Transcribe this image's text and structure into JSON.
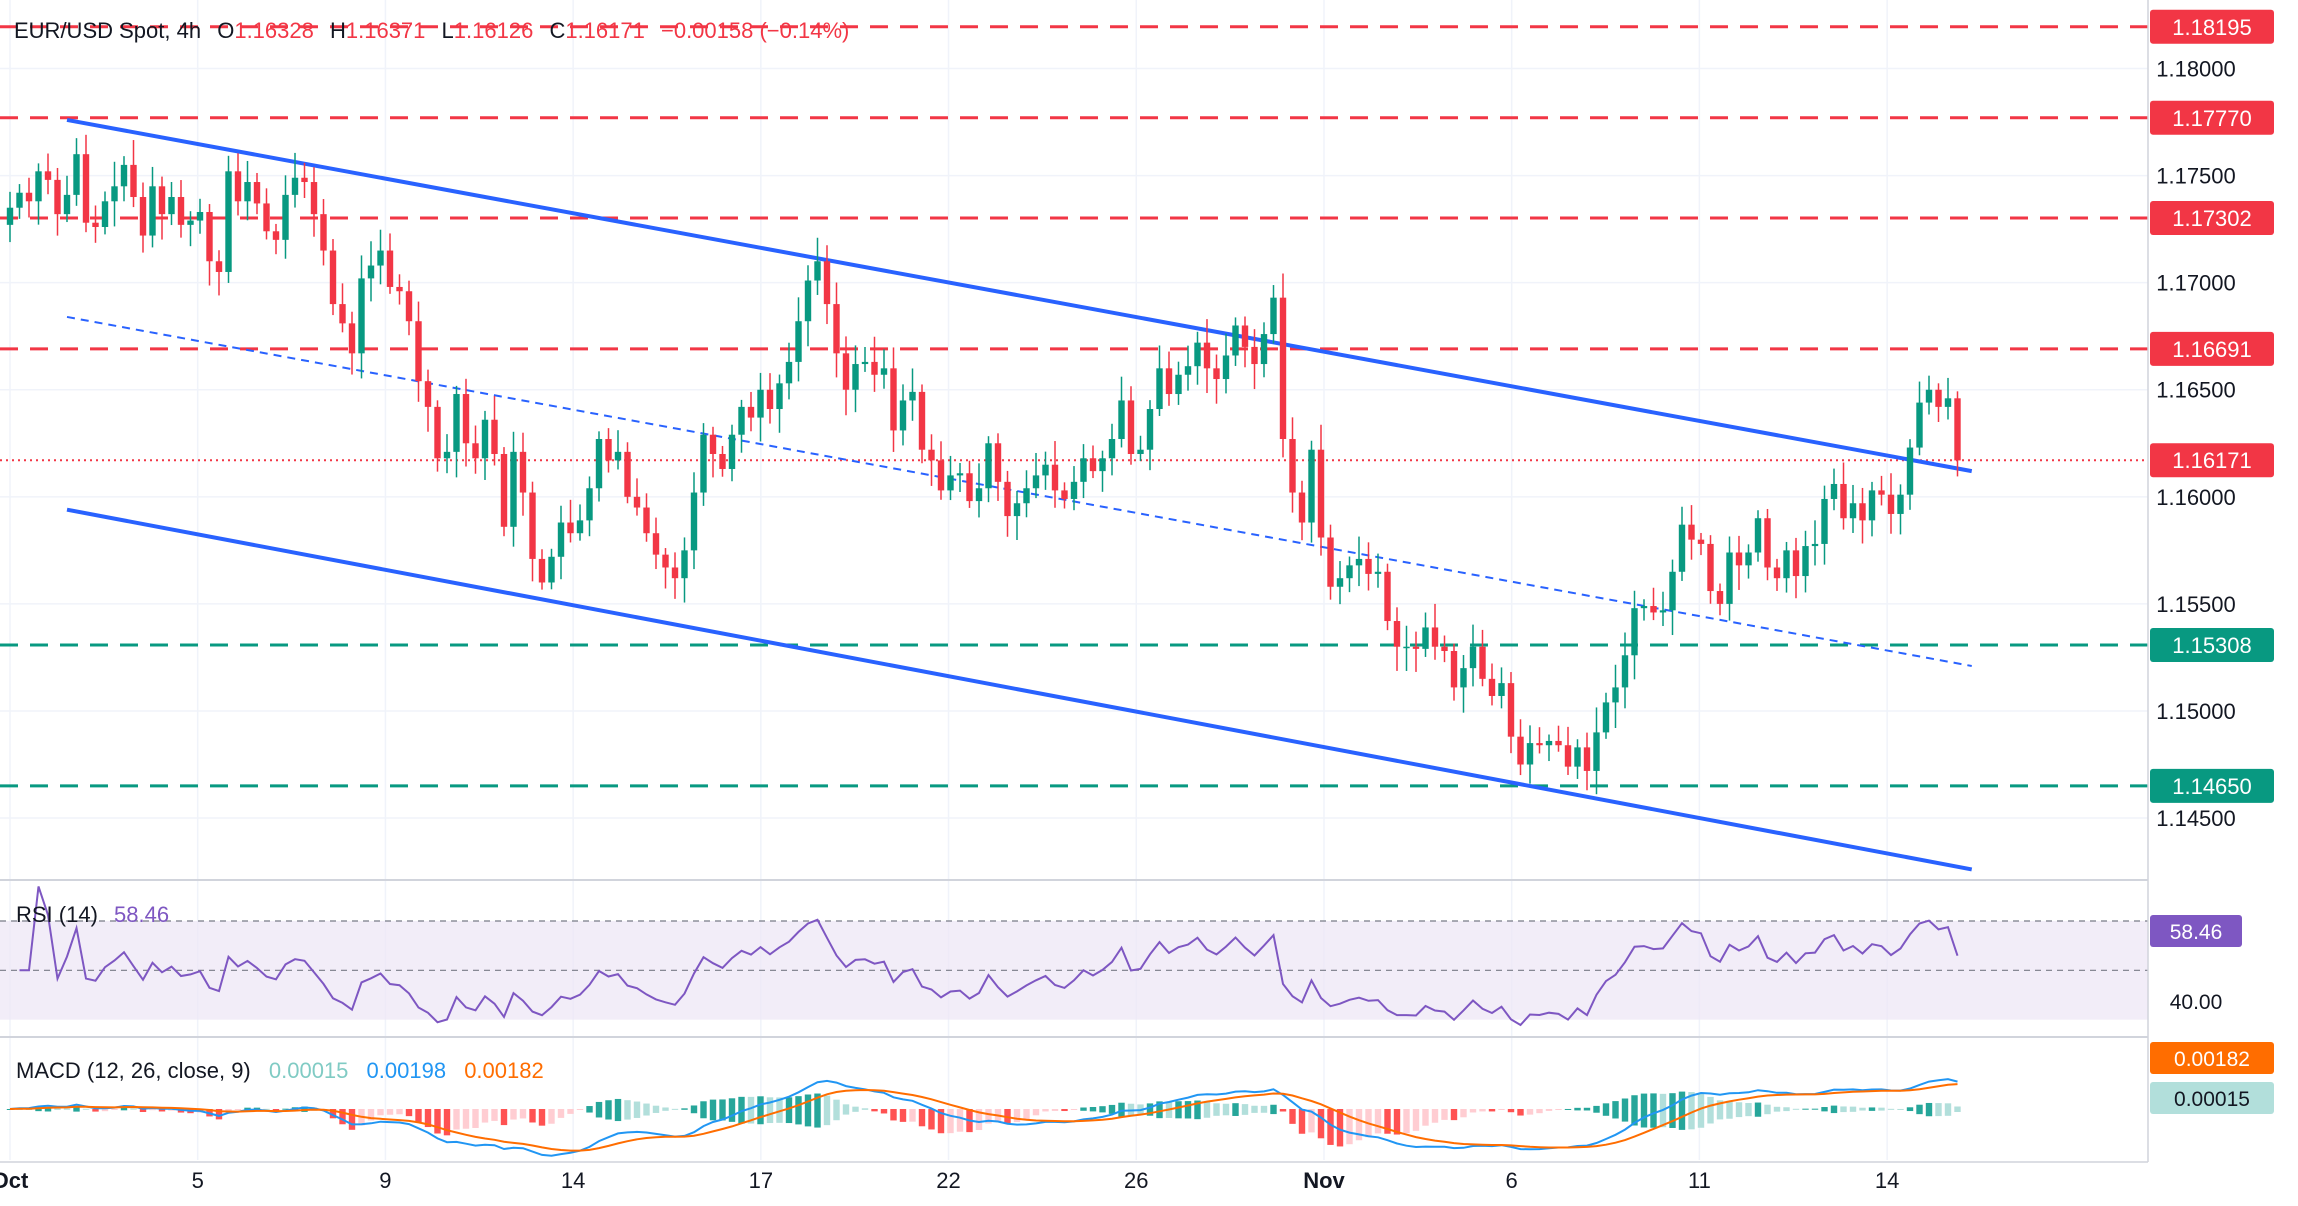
{
  "header": {
    "symbol": "EUR/USD Spot, 4h",
    "o_label": "O",
    "o_value": "1.16328",
    "h_label": "H",
    "h_value": "1.16371",
    "l_label": "L",
    "l_value": "1.16126",
    "c_label": "C",
    "c_value": "1.16171",
    "change": "−0.00158 (−0.14%)"
  },
  "colors": {
    "up": "#089981",
    "down": "#f23645",
    "trend": "#2962ff",
    "rsi": "#7e57c2",
    "macd": "#2196f3",
    "signal": "#ff6d00",
    "hist_up_strong": "#26a69a",
    "hist_up_weak": "#b2dfdb",
    "hist_down_strong": "#ff5252",
    "hist_down_weak": "#ffcdd2"
  },
  "price_axis": {
    "ticks": [
      "1.18000",
      "1.17500",
      "1.17000",
      "1.16500",
      "1.16000",
      "1.15500",
      "1.15000",
      "1.14500"
    ],
    "tick_values": [
      1.18,
      1.175,
      1.17,
      1.165,
      1.16,
      1.155,
      1.15,
      1.145
    ]
  },
  "levels": [
    {
      "label": "1.18195",
      "value": 1.18195,
      "kind": "resistance"
    },
    {
      "label": "1.17770",
      "value": 1.1777,
      "kind": "resistance"
    },
    {
      "label": "1.17302",
      "value": 1.17302,
      "kind": "resistance"
    },
    {
      "label": "1.16691",
      "value": 1.16691,
      "kind": "resistance"
    },
    {
      "label": "1.16171",
      "value": 1.16171,
      "kind": "last"
    },
    {
      "label": "1.15308",
      "value": 1.15308,
      "kind": "support"
    },
    {
      "label": "1.14650",
      "value": 1.1465,
      "kind": "support"
    }
  ],
  "x_axis": {
    "labels": [
      "Oct",
      "5",
      "9",
      "14",
      "17",
      "22",
      "26",
      "Nov",
      "6",
      "11",
      "14"
    ],
    "bar_index": [
      0,
      16,
      32,
      48,
      64,
      80,
      96,
      112,
      128,
      144,
      160
    ],
    "bold": [
      true,
      false,
      false,
      false,
      false,
      false,
      false,
      true,
      false,
      false,
      false
    ]
  },
  "rsi": {
    "label": "RSI (14)",
    "value": "58.46",
    "tick": "40.00",
    "upper": 70,
    "lower": 30,
    "mid": 50
  },
  "macd": {
    "label": "MACD (12, 26, close, 9)",
    "hist": "0.00015",
    "macd": "0.00198",
    "signal": "0.00182",
    "badge_signal": "0.00182",
    "badge_hist": "0.00015"
  },
  "chart_data": {
    "type": "candlestick",
    "title": "EUR/USD Spot, 4h",
    "ylim": [
      1.1422,
      1.1832
    ],
    "grid": true,
    "channel": {
      "upper": [
        [
          1.1776,
          1.1612
        ]
      ],
      "lower": [
        [
          1.1594,
          1.1426
        ]
      ],
      "middle_dashed": [
        [
          1.1684,
          1.1521
        ]
      ]
    },
    "closes": [
      1.1735,
      1.1742,
      1.1738,
      1.1752,
      1.1748,
      1.1732,
      1.1741,
      1.176,
      1.1728,
      1.1726,
      1.1738,
      1.1745,
      1.1755,
      1.174,
      1.1722,
      1.1745,
      1.1732,
      1.174,
      1.1727,
      1.1729,
      1.1733,
      1.171,
      1.1705,
      1.1752,
      1.1738,
      1.1747,
      1.1737,
      1.1724,
      1.172,
      1.1741,
      1.1749,
      1.1747,
      1.1732,
      1.1715,
      1.169,
      1.1681,
      1.1667,
      1.1702,
      1.1708,
      1.1715,
      1.1698,
      1.1696,
      1.1682,
      1.1654,
      1.1642,
      1.1618,
      1.1621,
      1.1648,
      1.1625,
      1.1618,
      1.1636,
      1.162,
      1.1586,
      1.1621,
      1.1602,
      1.1571,
      1.156,
      1.1572,
      1.1588,
      1.1583,
      1.1589,
      1.1604,
      1.1627,
      1.1617,
      1.1621,
      1.16,
      1.1595,
      1.1583,
      1.1573,
      1.1567,
      1.1562,
      1.1575,
      1.1602,
      1.1629,
      1.162,
      1.1613,
      1.1629,
      1.1642,
      1.1637,
      1.165,
      1.1641,
      1.1653,
      1.1663,
      1.1682,
      1.1701,
      1.171,
      1.169,
      1.1667,
      1.165,
      1.1662,
      1.1663,
      1.1657,
      1.166,
      1.1631,
      1.1645,
      1.1649,
      1.1622,
      1.1617,
      1.1603,
      1.161,
      1.1611,
      1.1598,
      1.1604,
      1.1625,
      1.1607,
      1.1591,
      1.1597,
      1.1604,
      1.161,
      1.1615,
      1.1603,
      1.1599,
      1.1607,
      1.1618,
      1.1612,
      1.1618,
      1.1627,
      1.1645,
      1.162,
      1.1622,
      1.1641,
      1.166,
      1.1648,
      1.1657,
      1.1661,
      1.1672,
      1.166,
      1.1655,
      1.1666,
      1.168,
      1.167,
      1.1662,
      1.1676,
      1.1693,
      1.1627,
      1.1602,
      1.1588,
      1.1622,
      1.1581,
      1.1558,
      1.1562,
      1.1568,
      1.1571,
      1.1564,
      1.1565,
      1.1542,
      1.153,
      1.153,
      1.1529,
      1.1539,
      1.153,
      1.1528,
      1.1511,
      1.152,
      1.153,
      1.1515,
      1.1507,
      1.1513,
      1.1488,
      1.1475,
      1.1485,
      1.1484,
      1.1486,
      1.1484,
      1.1474,
      1.1483,
      1.1472,
      1.149,
      1.1504,
      1.1511,
      1.1526,
      1.1548,
      1.1549,
      1.1546,
      1.1547,
      1.1565,
      1.1587,
      1.158,
      1.1578,
      1.1556,
      1.155,
      1.1574,
      1.1568,
      1.1574,
      1.159,
      1.1567,
      1.1562,
      1.1575,
      1.1563,
      1.1577,
      1.1578,
      1.1599,
      1.1606,
      1.159,
      1.1597,
      1.1589,
      1.1603,
      1.1601,
      1.1592,
      1.1601,
      1.1623,
      1.1644,
      1.165,
      1.1642,
      1.1646,
      1.1617
    ]
  }
}
